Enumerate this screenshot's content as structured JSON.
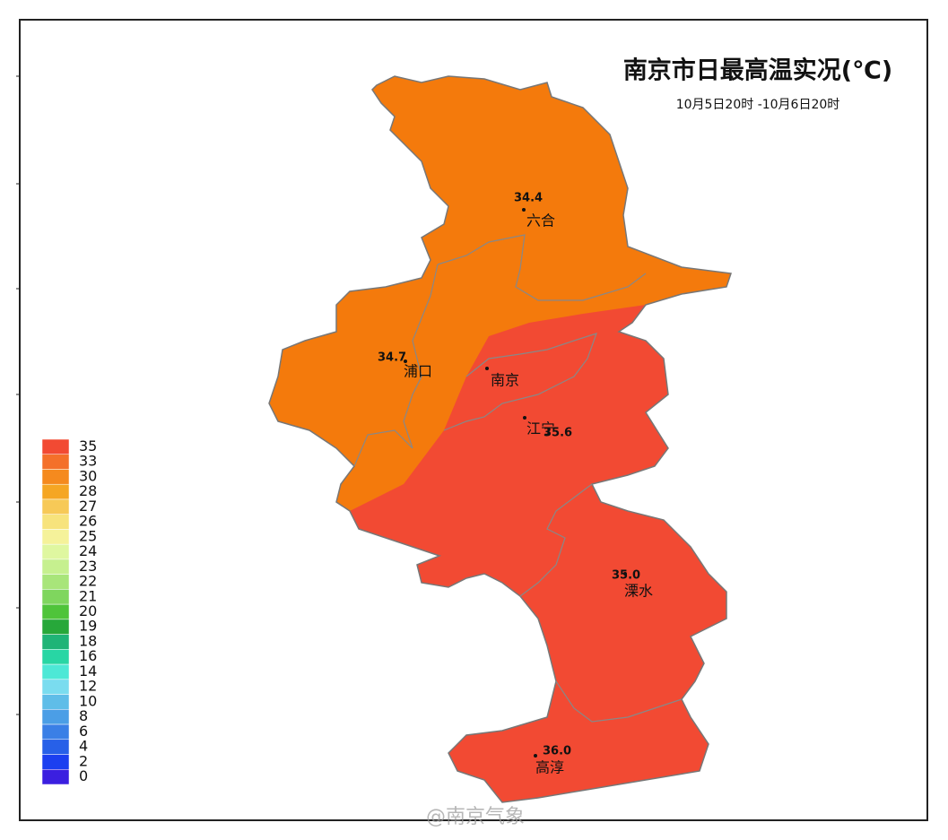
{
  "header": {
    "title": "南京市日最高温实况(℃)",
    "subtitle": "10月5日20时 -10月6日20时"
  },
  "stations": [
    {
      "name": "六合",
      "value": "34.4"
    },
    {
      "name": "浦口",
      "value": "34.7"
    },
    {
      "name": "南京"
    },
    {
      "name": "江宁",
      "value": "35.6"
    },
    {
      "name": "溧水",
      "value": "35.0"
    },
    {
      "name": "高淳",
      "value": "36.0"
    }
  ],
  "legend": {
    "labels": [
      "35",
      "33",
      "30",
      "28",
      "27",
      "26",
      "25",
      "24",
      "23",
      "22",
      "21",
      "20",
      "19",
      "18",
      "16",
      "14",
      "12",
      "10",
      "8",
      "6",
      "4",
      "2",
      "0"
    ],
    "colors": [
      "#f24a33",
      "#f4702a",
      "#f58a1e",
      "#f5a623",
      "#f7c957",
      "#f7e37c",
      "#f5f29a",
      "#dff7a0",
      "#c6f08f",
      "#a8e57a",
      "#7fd65e",
      "#4fc43a",
      "#27a83a",
      "#1fb477",
      "#28d6a4",
      "#4de8d6",
      "#7adcef",
      "#5fbde8",
      "#4b9ee6",
      "#3a7fe6",
      "#2760e8",
      "#1b3ff0",
      "#3b1fe0"
    ]
  },
  "watermark": "@南京气象"
}
